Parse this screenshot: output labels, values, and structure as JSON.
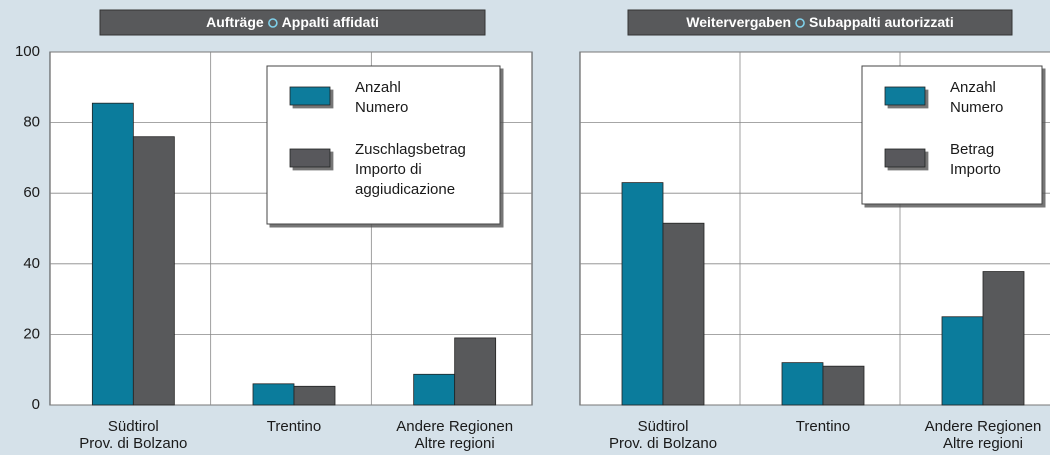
{
  "chart_data": [
    {
      "type": "bar",
      "title": [
        "Aufträge",
        "Appalti affidati"
      ],
      "categories": [
        [
          "Südtirol",
          "Prov. di Bolzano"
        ],
        [
          "Trentino"
        ],
        [
          "Andere Regionen",
          "Altre regioni"
        ]
      ],
      "series": [
        {
          "name": [
            "Anzahl",
            "Numero"
          ],
          "color": "#0b7c9c",
          "values": [
            85.5,
            6,
            8.7
          ]
        },
        {
          "name": [
            "Zuschlagsbetrag",
            "Importo di",
            "aggiudicazione"
          ],
          "color": "#58595b",
          "values": [
            76,
            5.3,
            19
          ]
        }
      ],
      "ylim": [
        0,
        100
      ],
      "yticks": [
        0,
        20,
        40,
        60,
        80,
        100
      ],
      "grid": true,
      "ytick_labels": true,
      "legend": "upper right"
    },
    {
      "type": "bar",
      "title": [
        "Weitervergaben",
        "Subappalti autorizzati"
      ],
      "categories": [
        [
          "Südtirol",
          "Prov. di Bolzano"
        ],
        [
          "Trentino"
        ],
        [
          "Andere Regionen",
          "Altre regioni"
        ]
      ],
      "series": [
        {
          "name": [
            "Anzahl",
            "Numero"
          ],
          "color": "#0b7c9c",
          "values": [
            63,
            12,
            25
          ]
        },
        {
          "name": [
            "Betrag",
            "Importo"
          ],
          "color": "#58595b",
          "values": [
            51.5,
            11,
            37.8
          ]
        }
      ],
      "ylim": [
        0,
        100
      ],
      "yticks": [
        0,
        20,
        40,
        60,
        80,
        100
      ],
      "grid": true,
      "ytick_labels": false,
      "legend": "upper right"
    }
  ]
}
